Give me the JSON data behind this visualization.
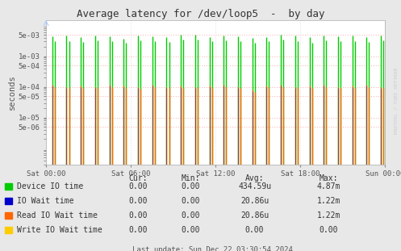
{
  "title": "Average latency for /dev/loop5  -  by day",
  "ylabel": "seconds",
  "background_color": "#e8e8e8",
  "plot_bg_color": "#ffffff",
  "grid_color_h": "#ffaaaa",
  "grid_color_v": "#dddddd",
  "x_tick_labels": [
    "Sat 00:00",
    "Sat 06:00",
    "Sat 12:00",
    "Sat 18:00",
    "Sun 00:00"
  ],
  "series": [
    {
      "label": "Device IO time",
      "color": "#00cc00"
    },
    {
      "label": "IO Wait time",
      "color": "#0000cc"
    },
    {
      "label": "Read IO Wait time",
      "color": "#ff6600"
    },
    {
      "label": "Write IO Wait time",
      "color": "#ffcc00"
    }
  ],
  "legend_table": {
    "headers": [
      "Cur:",
      "Min:",
      "Avg:",
      "Max:"
    ],
    "rows": [
      [
        "0.00",
        "0.00",
        "434.59u",
        "4.87m"
      ],
      [
        "0.00",
        "0.00",
        "20.86u",
        "1.22m"
      ],
      [
        "0.00",
        "0.00",
        "20.86u",
        "1.22m"
      ],
      [
        "0.00",
        "0.00",
        "0.00",
        "0.00"
      ]
    ]
  },
  "footer": "Last update: Sun Dec 22 03:30:54 2024",
  "rrdtool_label": "RRDTOOL / TOBI OETIKER",
  "y_ticks": [
    5e-06,
    1e-05,
    5e-05,
    0.0001,
    0.0005,
    0.001,
    0.005
  ],
  "y_labels": [
    "5e-06",
    "1e-05",
    "5e-05",
    "1e-04",
    "5e-04",
    "1e-03",
    "5e-03"
  ],
  "ylim": [
    3e-07,
    0.015
  ],
  "n_groups": 24,
  "green_heights": [
    0.0045,
    0.0048,
    0.0042,
    0.0046,
    0.0044,
    0.0038,
    0.0047,
    0.0044,
    0.0041,
    0.0049,
    0.005,
    0.0043,
    0.0047,
    0.0045,
    0.004,
    0.0043,
    0.0049,
    0.0046,
    0.0042,
    0.0048,
    0.0044,
    0.0046,
    0.0043,
    0.0048
  ],
  "green2_heights": [
    0.003,
    0.0031,
    0.0029,
    0.0033,
    0.003,
    0.0028,
    0.0032,
    0.003,
    0.0029,
    0.0034,
    0.0035,
    0.003,
    0.0032,
    0.0031,
    0.0028,
    0.003,
    0.0034,
    0.0031,
    0.0028,
    0.0033,
    0.003,
    0.0031,
    0.0029,
    0.0033
  ],
  "orange_heights": [
    0.00012,
    0.0001,
    0.00011,
    0.0001,
    0.00012,
    0.00011,
    0.0001,
    0.00012,
    0.0001,
    0.00011,
    0.0001,
    0.00011,
    0.00012,
    0.0001,
    8e-05,
    0.00011,
    0.00012,
    0.0001,
    0.00011,
    0.00012,
    0.0001,
    0.00011,
    0.00012,
    0.0001
  ],
  "orange2_heights": [
    0.0001,
    9e-05,
    9.5e-05,
    9e-05,
    0.0001,
    9e-05,
    8.5e-05,
    0.0001,
    9e-05,
    9.5e-05,
    9e-05,
    9.5e-05,
    0.0001,
    9e-05,
    7e-05,
    9.5e-05,
    0.0001,
    9e-05,
    9.5e-05,
    0.0001,
    9e-05,
    9.5e-05,
    0.0001,
    9e-05
  ]
}
